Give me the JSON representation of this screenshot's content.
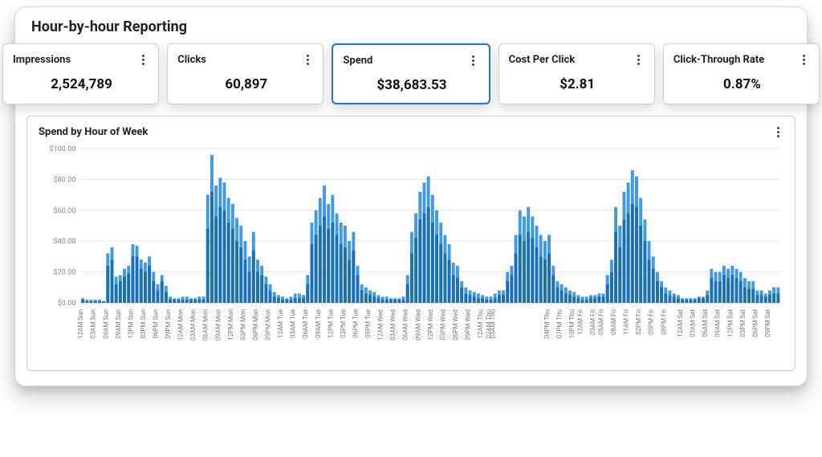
{
  "page_title": "Hour-by-hour Reporting",
  "metrics": [
    {
      "id": "impressions",
      "label": "Impressions",
      "value": "2,524,789",
      "selected": false
    },
    {
      "id": "clicks",
      "label": "Clicks",
      "value": "60,897",
      "selected": false
    },
    {
      "id": "spend",
      "label": "Spend",
      "value": "$38,683.53",
      "selected": true
    },
    {
      "id": "cpc",
      "label": "Cost Per Click",
      "value": "$2.81",
      "selected": false
    },
    {
      "id": "ctr",
      "label": "Click-Through Rate",
      "value": "0.87%",
      "selected": false
    }
  ],
  "chart": {
    "title": "Spend by Hour of Week",
    "type": "bar",
    "ylim": [
      0,
      100
    ],
    "ytick_step": 20,
    "ytick_format": "$%v.00",
    "background_color": "#ffffff",
    "grid_color": "#e6e6e6",
    "axis_color": "#bdbdbd",
    "bar_colors": {
      "a": "#3e9ae8",
      "b": "#1a6fb5"
    },
    "bar_gap_ratio": 0.25,
    "title_fontsize": 13,
    "label_fontsize": 9,
    "xtick_fontsize": 8,
    "days": [
      "Sun",
      "Mon",
      "Tue",
      "Wed",
      "Thu",
      "Fri",
      "Sat"
    ],
    "series_a": [
      3,
      2,
      2,
      2,
      2,
      1,
      32,
      36,
      17,
      18,
      22,
      24,
      38,
      37,
      28,
      26,
      30,
      20,
      12,
      18,
      11,
      4,
      3,
      3,
      4,
      4,
      3,
      3,
      4,
      4,
      70,
      96,
      76,
      81,
      78,
      68,
      64,
      55,
      50,
      40,
      30,
      46,
      28,
      24,
      17,
      12,
      7,
      5,
      4,
      3,
      4,
      6,
      6,
      5,
      18,
      52,
      60,
      68,
      76,
      64,
      70,
      58,
      52,
      50,
      40,
      46,
      24,
      12,
      10,
      8,
      7,
      5,
      4,
      4,
      3,
      3,
      3,
      4,
      18,
      46,
      58,
      72,
      78,
      82,
      70,
      60,
      52,
      44,
      38,
      26,
      24,
      14,
      10,
      8,
      7,
      6,
      5,
      4,
      4,
      6,
      8,
      8,
      20,
      24,
      44,
      60,
      56,
      62,
      56,
      50,
      44,
      40,
      44,
      24,
      14,
      12,
      10,
      8,
      7,
      5,
      4,
      4,
      5,
      5,
      6,
      6,
      18,
      28,
      62,
      50,
      72,
      78,
      86,
      82,
      68,
      54,
      40,
      30,
      20,
      14,
      10,
      8,
      6,
      5,
      3,
      3,
      3,
      3,
      4,
      4,
      8,
      22,
      20,
      20,
      24,
      22,
      24,
      22,
      20,
      16,
      14,
      14,
      8,
      8,
      6,
      8,
      10,
      10
    ],
    "series_b": [
      2,
      1,
      1,
      1,
      1,
      1,
      24,
      28,
      12,
      14,
      17,
      19,
      30,
      30,
      22,
      20,
      24,
      14,
      8,
      14,
      7,
      2,
      2,
      2,
      2,
      2,
      2,
      2,
      2,
      2,
      48,
      72,
      56,
      62,
      60,
      52,
      48,
      40,
      36,
      28,
      20,
      34,
      20,
      18,
      12,
      8,
      4,
      3,
      2,
      2,
      2,
      3,
      3,
      3,
      12,
      38,
      44,
      50,
      56,
      48,
      52,
      44,
      38,
      36,
      28,
      34,
      18,
      8,
      6,
      5,
      4,
      3,
      2,
      2,
      2,
      2,
      2,
      2,
      12,
      32,
      42,
      54,
      58,
      62,
      52,
      44,
      38,
      32,
      28,
      18,
      16,
      10,
      6,
      5,
      4,
      3,
      3,
      2,
      2,
      3,
      5,
      5,
      14,
      18,
      32,
      44,
      40,
      46,
      42,
      36,
      30,
      28,
      32,
      18,
      10,
      8,
      6,
      5,
      4,
      3,
      2,
      2,
      3,
      3,
      4,
      4,
      12,
      20,
      46,
      36,
      54,
      58,
      64,
      62,
      50,
      40,
      28,
      22,
      14,
      10,
      6,
      5,
      4,
      3,
      2,
      2,
      2,
      2,
      3,
      3,
      5,
      16,
      14,
      14,
      18,
      16,
      18,
      16,
      14,
      10,
      9,
      9,
      5,
      5,
      4,
      5,
      6,
      6
    ],
    "x_ticks": [
      "12AM Sun",
      "03AM Sun",
      "06AM Sun",
      "09AM Sun",
      "12PM Sun",
      "03PM Sun",
      "06PM Sun",
      "09PM Sun",
      "12AM Mon",
      "03AM Mon",
      "06AM Mon",
      "09AM Mon",
      "12PM Mon",
      "03PM Mon",
      "06PM Mon",
      "09PM Mon",
      "12AM Tue",
      "03AM Tue",
      "06AM Tue",
      "09AM Tue",
      "12PM Tue",
      "03PM Tue",
      "06PM Tue",
      "09PM Tue",
      "12AM Wed",
      "03AM Wed",
      "06AM Wed",
      "09AM Wed",
      "12PM Wed",
      "03PM Wed",
      "06PM Wed",
      "09PM Wed",
      "12AM Thu",
      "02AM Thu",
      "03AM Thu",
      "04PM Thu",
      "07PM Thu",
      "10PM Thu",
      "12AM Fri",
      "03AM Fri",
      "05AM Fri",
      "08AM Fri",
      "11AM Fri",
      "02PM Fri",
      "05PM Fri",
      "08PM Fri",
      "12AM Sat",
      "03AM Sat",
      "06AM Sat",
      "09AM Sat",
      "12PM Sat",
      "03PM Sat",
      "06PM Sat",
      "09PM Sat"
    ],
    "x_tick_positions": [
      0,
      3,
      6,
      9,
      12,
      15,
      18,
      21,
      24,
      27,
      30,
      33,
      36,
      39,
      42,
      45,
      48,
      51,
      54,
      57,
      60,
      63,
      66,
      69,
      72,
      75,
      78,
      81,
      84,
      87,
      90,
      93,
      96,
      98,
      99,
      112,
      115,
      118,
      120,
      123,
      125,
      128,
      131,
      134,
      137,
      140,
      144,
      147,
      150,
      153,
      156,
      159,
      162,
      165
    ]
  }
}
